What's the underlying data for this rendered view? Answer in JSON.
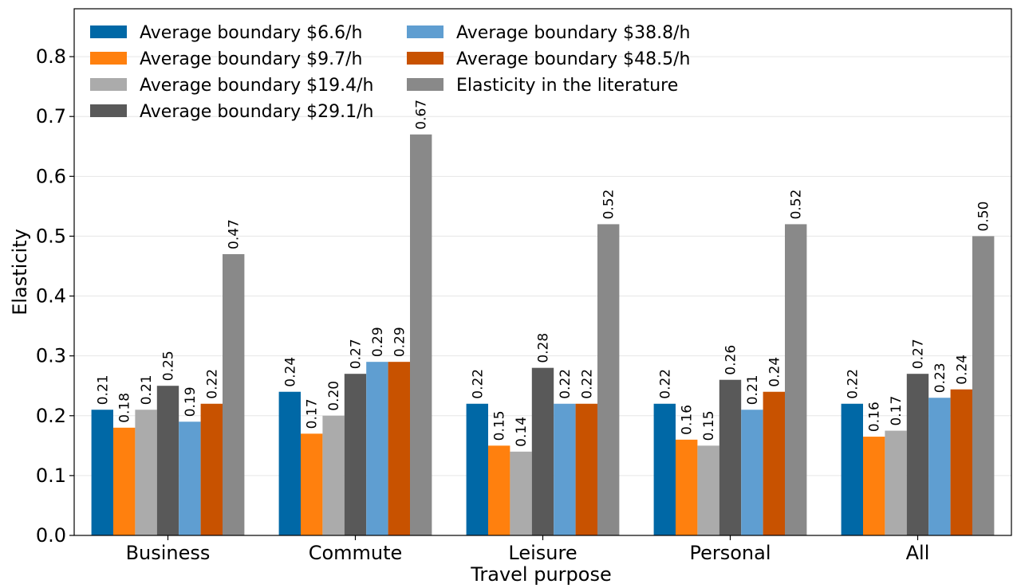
{
  "chart_data": {
    "type": "bar",
    "xlabel": "Travel purpose",
    "ylabel": "Elasticity",
    "ylim": [
      0,
      0.88
    ],
    "yticks": [
      "0.0",
      "0.1",
      "0.2",
      "0.3",
      "0.4",
      "0.5",
      "0.6",
      "0.7",
      "0.8"
    ],
    "grid": true,
    "legend_position": "top-left",
    "categories": [
      "Business",
      "Commute",
      "Leisure",
      "Personal",
      "All"
    ],
    "series": [
      {
        "name": "Average boundary $6.6/h",
        "color": "#0068a6",
        "values": [
          0.21,
          0.24,
          0.22,
          0.22,
          0.22
        ],
        "labels": [
          "0.21",
          "0.24",
          "0.22",
          "0.22",
          "0.22"
        ]
      },
      {
        "name": "Average boundary $9.7/h",
        "color": "#ff800e",
        "values": [
          0.18,
          0.17,
          0.15,
          0.16,
          0.165
        ],
        "labels": [
          "0.18",
          "0.17",
          "0.15",
          "0.16",
          "0.16"
        ]
      },
      {
        "name": "Average boundary $19.4/h",
        "color": "#ababab",
        "values": [
          0.21,
          0.2,
          0.14,
          0.15,
          0.175
        ],
        "labels": [
          "0.21",
          "0.20",
          "0.14",
          "0.15",
          "0.17"
        ]
      },
      {
        "name": "Average boundary $29.1/h",
        "color": "#595959",
        "values": [
          0.25,
          0.27,
          0.28,
          0.26,
          0.27
        ],
        "labels": [
          "0.25",
          "0.27",
          "0.28",
          "0.26",
          "0.27"
        ]
      },
      {
        "name": "Average boundary $38.8/h",
        "color": "#5f9ed1",
        "values": [
          0.19,
          0.29,
          0.22,
          0.21,
          0.23
        ],
        "labels": [
          "0.19",
          "0.29",
          "0.22",
          "0.21",
          "0.23"
        ]
      },
      {
        "name": "Average boundary $48.5/h",
        "color": "#c85200",
        "values": [
          0.22,
          0.29,
          0.22,
          0.24,
          0.244
        ],
        "labels": [
          "0.22",
          "0.29",
          "0.22",
          "0.24",
          "0.24"
        ]
      },
      {
        "name": "Elasticity in the literature",
        "color": "#898989",
        "values": [
          0.47,
          0.67,
          0.52,
          0.52,
          0.5
        ],
        "labels": [
          "0.47",
          "0.67",
          "0.52",
          "0.52",
          "0.50"
        ]
      }
    ]
  }
}
